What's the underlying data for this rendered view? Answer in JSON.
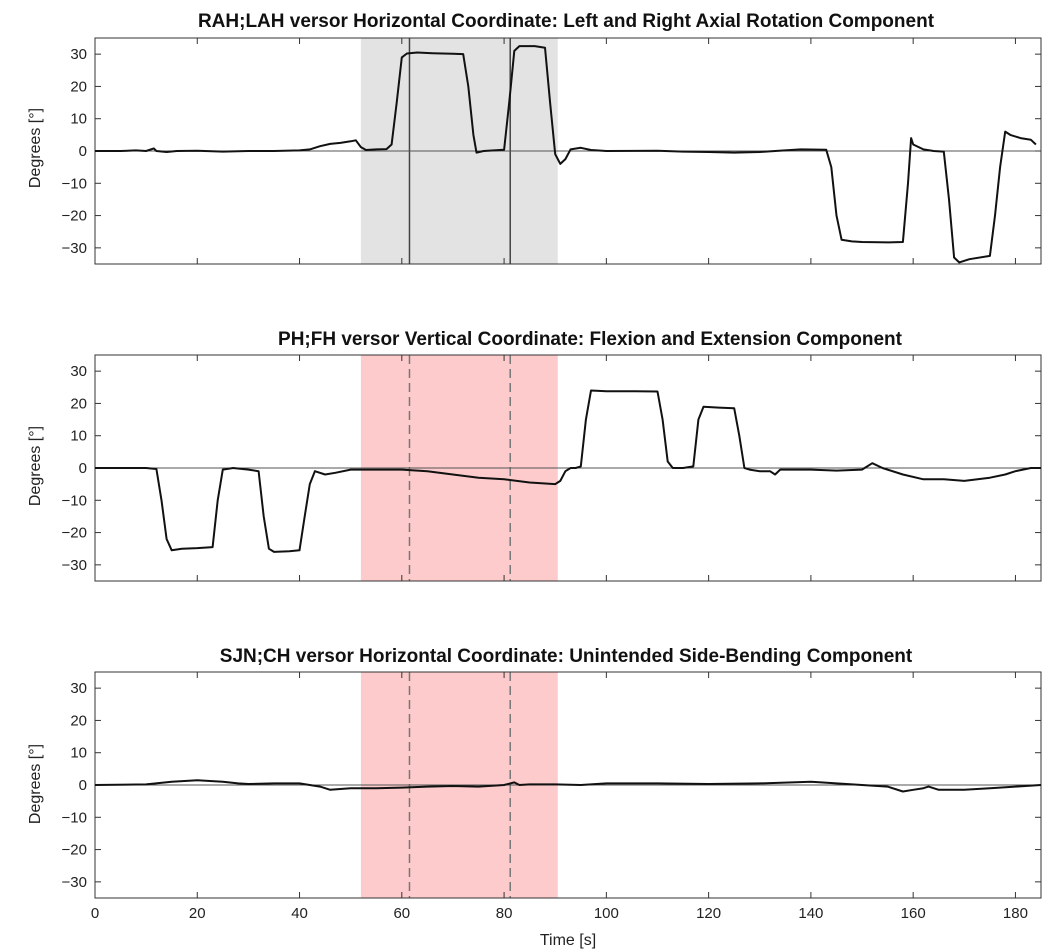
{
  "chart_data": [
    {
      "type": "line",
      "title": "RAH;LAH versor Horizontal Coordinate: Left and Right Axial Rotation Component",
      "ylabel": "Degrees [°]",
      "xlabel": "",
      "xlim": [
        0,
        185
      ],
      "ylim": [
        -35,
        35
      ],
      "xticks": [
        0,
        20,
        40,
        60,
        80,
        100,
        120,
        140,
        160,
        180
      ],
      "yticks": [
        30,
        20,
        10,
        0,
        -10,
        -20,
        -30
      ],
      "shade": {
        "x": [
          52,
          90.5
        ],
        "color": "#e3e3e3"
      },
      "vlines": {
        "x": [
          61.5,
          81.2
        ],
        "style": "solid"
      },
      "zero_line": true,
      "series": [
        {
          "color": "#111111",
          "points": [
            [
              0,
              0
            ],
            [
              5,
              0
            ],
            [
              8,
              0.2
            ],
            [
              10,
              0
            ],
            [
              11.5,
              0.8
            ],
            [
              12,
              0
            ],
            [
              14,
              -0.3
            ],
            [
              16,
              0
            ],
            [
              20,
              0.1
            ],
            [
              25,
              -0.2
            ],
            [
              30,
              0
            ],
            [
              35,
              0
            ],
            [
              40,
              0.2
            ],
            [
              42,
              0.5
            ],
            [
              44,
              1.5
            ],
            [
              46,
              2.2
            ],
            [
              48,
              2.5
            ],
            [
              50,
              3
            ],
            [
              51,
              3.3
            ],
            [
              52,
              1.2
            ],
            [
              53,
              0.3
            ],
            [
              55,
              0.5
            ],
            [
              57,
              0.6
            ],
            [
              58,
              2
            ],
            [
              59,
              15
            ],
            [
              60,
              29
            ],
            [
              61,
              30.2
            ],
            [
              63,
              30.5
            ],
            [
              66,
              30.3
            ],
            [
              70,
              30.1
            ],
            [
              72,
              30
            ],
            [
              73,
              20
            ],
            [
              74,
              5
            ],
            [
              74.6,
              -0.5
            ],
            [
              76,
              0
            ],
            [
              78,
              0.2
            ],
            [
              80,
              0.4
            ],
            [
              81,
              15
            ],
            [
              82,
              31
            ],
            [
              83,
              32.5
            ],
            [
              86,
              32.5
            ],
            [
              88,
              32
            ],
            [
              89,
              15
            ],
            [
              90,
              -1
            ],
            [
              91,
              -4
            ],
            [
              92,
              -2.5
            ],
            [
              93,
              0.5
            ],
            [
              95,
              1
            ],
            [
              97,
              0.3
            ],
            [
              100,
              0
            ],
            [
              110,
              0.1
            ],
            [
              115,
              -0.2
            ],
            [
              120,
              -0.3
            ],
            [
              125,
              -0.5
            ],
            [
              130,
              -0.3
            ],
            [
              133,
              0
            ],
            [
              138,
              0.5
            ],
            [
              143,
              0.4
            ],
            [
              144,
              -5
            ],
            [
              145,
              -20
            ],
            [
              146,
              -27.5
            ],
            [
              148,
              -28
            ],
            [
              150,
              -28.2
            ],
            [
              155,
              -28.3
            ],
            [
              158,
              -28.2
            ],
            [
              159,
              -10
            ],
            [
              159.6,
              4
            ],
            [
              160,
              2
            ],
            [
              162,
              0.5
            ],
            [
              164,
              0
            ],
            [
              166,
              -0.2
            ],
            [
              167,
              -15
            ],
            [
              168,
              -33
            ],
            [
              169,
              -34.5
            ],
            [
              171,
              -33.5
            ],
            [
              175,
              -32.5
            ],
            [
              176,
              -20
            ],
            [
              177,
              -5
            ],
            [
              178,
              6
            ],
            [
              179,
              5
            ],
            [
              181,
              4
            ],
            [
              183,
              3.5
            ],
            [
              184,
              2
            ]
          ]
        }
      ]
    },
    {
      "type": "line",
      "title": "PH;FH versor Vertical Coordinate: Flexion and Extension Component",
      "ylabel": "Degrees [°]",
      "xlabel": "",
      "xlim": [
        0,
        185
      ],
      "ylim": [
        -35,
        35
      ],
      "xticks": [
        0,
        20,
        40,
        60,
        80,
        100,
        120,
        140,
        160,
        180
      ],
      "yticks": [
        30,
        20,
        10,
        0,
        -10,
        -20,
        -30
      ],
      "shade": {
        "x": [
          52,
          90.5
        ],
        "color": "#fdcbcb"
      },
      "vlines": {
        "x": [
          61.5,
          81.2
        ],
        "style": "dashed"
      },
      "zero_line": true,
      "series": [
        {
          "color": "#111111",
          "points": [
            [
              0,
              0
            ],
            [
              5,
              0
            ],
            [
              10,
              0
            ],
            [
              12,
              -0.3
            ],
            [
              13,
              -10
            ],
            [
              14,
              -22
            ],
            [
              15,
              -25.5
            ],
            [
              17,
              -25
            ],
            [
              20,
              -24.8
            ],
            [
              23,
              -24.5
            ],
            [
              24,
              -10
            ],
            [
              25,
              -0.5
            ],
            [
              27,
              0
            ],
            [
              30,
              -0.5
            ],
            [
              32,
              -1
            ],
            [
              33,
              -15
            ],
            [
              34,
              -25
            ],
            [
              35,
              -26
            ],
            [
              38,
              -25.8
            ],
            [
              40,
              -25.5
            ],
            [
              41,
              -15
            ],
            [
              42,
              -5
            ],
            [
              43,
              -1
            ],
            [
              45,
              -2
            ],
            [
              47,
              -1.5
            ],
            [
              50,
              -0.5
            ],
            [
              55,
              -0.5
            ],
            [
              60,
              -0.5
            ],
            [
              65,
              -1
            ],
            [
              70,
              -2
            ],
            [
              75,
              -3
            ],
            [
              80,
              -3.5
            ],
            [
              85,
              -4.5
            ],
            [
              90,
              -5
            ],
            [
              91,
              -4
            ],
            [
              92,
              -1
            ],
            [
              93,
              0
            ],
            [
              94,
              0
            ],
            [
              95,
              0.5
            ],
            [
              96,
              15
            ],
            [
              97,
              24
            ],
            [
              100,
              23.8
            ],
            [
              105,
              23.8
            ],
            [
              110,
              23.7
            ],
            [
              111,
              15
            ],
            [
              112,
              2
            ],
            [
              113,
              0
            ],
            [
              115,
              0
            ],
            [
              117,
              0.5
            ],
            [
              118,
              15
            ],
            [
              119,
              19
            ],
            [
              122,
              18.7
            ],
            [
              125,
              18.5
            ],
            [
              126,
              10
            ],
            [
              127,
              0
            ],
            [
              128,
              -0.5
            ],
            [
              130,
              -1
            ],
            [
              132,
              -1
            ],
            [
              133,
              -2
            ],
            [
              134,
              -0.5
            ],
            [
              140,
              -0.5
            ],
            [
              145,
              -0.8
            ],
            [
              150,
              -0.5
            ],
            [
              152,
              1.5
            ],
            [
              154,
              0
            ],
            [
              158,
              -2
            ],
            [
              162,
              -3.5
            ],
            [
              166,
              -3.5
            ],
            [
              170,
              -4
            ],
            [
              175,
              -3
            ],
            [
              178,
              -2
            ],
            [
              180,
              -1
            ],
            [
              183,
              0
            ],
            [
              185,
              0
            ]
          ]
        }
      ]
    },
    {
      "type": "line",
      "title": "SJN;CH versor Horizontal Coordinate: Unintended Side-Bending Component",
      "ylabel": "Degrees [°]",
      "xlabel": "Time [s]",
      "xlim": [
        0,
        185
      ],
      "ylim": [
        -35,
        35
      ],
      "xticks": [
        0,
        20,
        40,
        60,
        80,
        100,
        120,
        140,
        160,
        180
      ],
      "yticks": [
        30,
        20,
        10,
        0,
        -10,
        -20,
        -30
      ],
      "shade": {
        "x": [
          52,
          90.5
        ],
        "color": "#fdcbcb"
      },
      "vlines": {
        "x": [
          61.5,
          81.2
        ],
        "style": "dashed"
      },
      "zero_line": true,
      "series": [
        {
          "color": "#111111",
          "points": [
            [
              0,
              0
            ],
            [
              10,
              0.2
            ],
            [
              15,
              1
            ],
            [
              20,
              1.5
            ],
            [
              25,
              1
            ],
            [
              28,
              0.5
            ],
            [
              30,
              0.3
            ],
            [
              35,
              0.5
            ],
            [
              40,
              0.5
            ],
            [
              44,
              -0.5
            ],
            [
              46,
              -1.5
            ],
            [
              50,
              -1
            ],
            [
              55,
              -1
            ],
            [
              60,
              -0.8
            ],
            [
              65,
              -0.5
            ],
            [
              70,
              -0.3
            ],
            [
              75,
              -0.5
            ],
            [
              80,
              0
            ],
            [
              82,
              0.8
            ],
            [
              83,
              0
            ],
            [
              85,
              0.2
            ],
            [
              90,
              0.2
            ],
            [
              95,
              0
            ],
            [
              100,
              0.5
            ],
            [
              110,
              0.5
            ],
            [
              120,
              0.3
            ],
            [
              130,
              0.5
            ],
            [
              140,
              1
            ],
            [
              142,
              0.8
            ],
            [
              145,
              0.5
            ],
            [
              150,
              0
            ],
            [
              155,
              -0.5
            ],
            [
              158,
              -2
            ],
            [
              160,
              -1.5
            ],
            [
              162,
              -1
            ],
            [
              163,
              -0.5
            ],
            [
              165,
              -1.5
            ],
            [
              170,
              -1.5
            ],
            [
              175,
              -1
            ],
            [
              180,
              -0.5
            ],
            [
              185,
              0
            ]
          ]
        }
      ]
    }
  ]
}
